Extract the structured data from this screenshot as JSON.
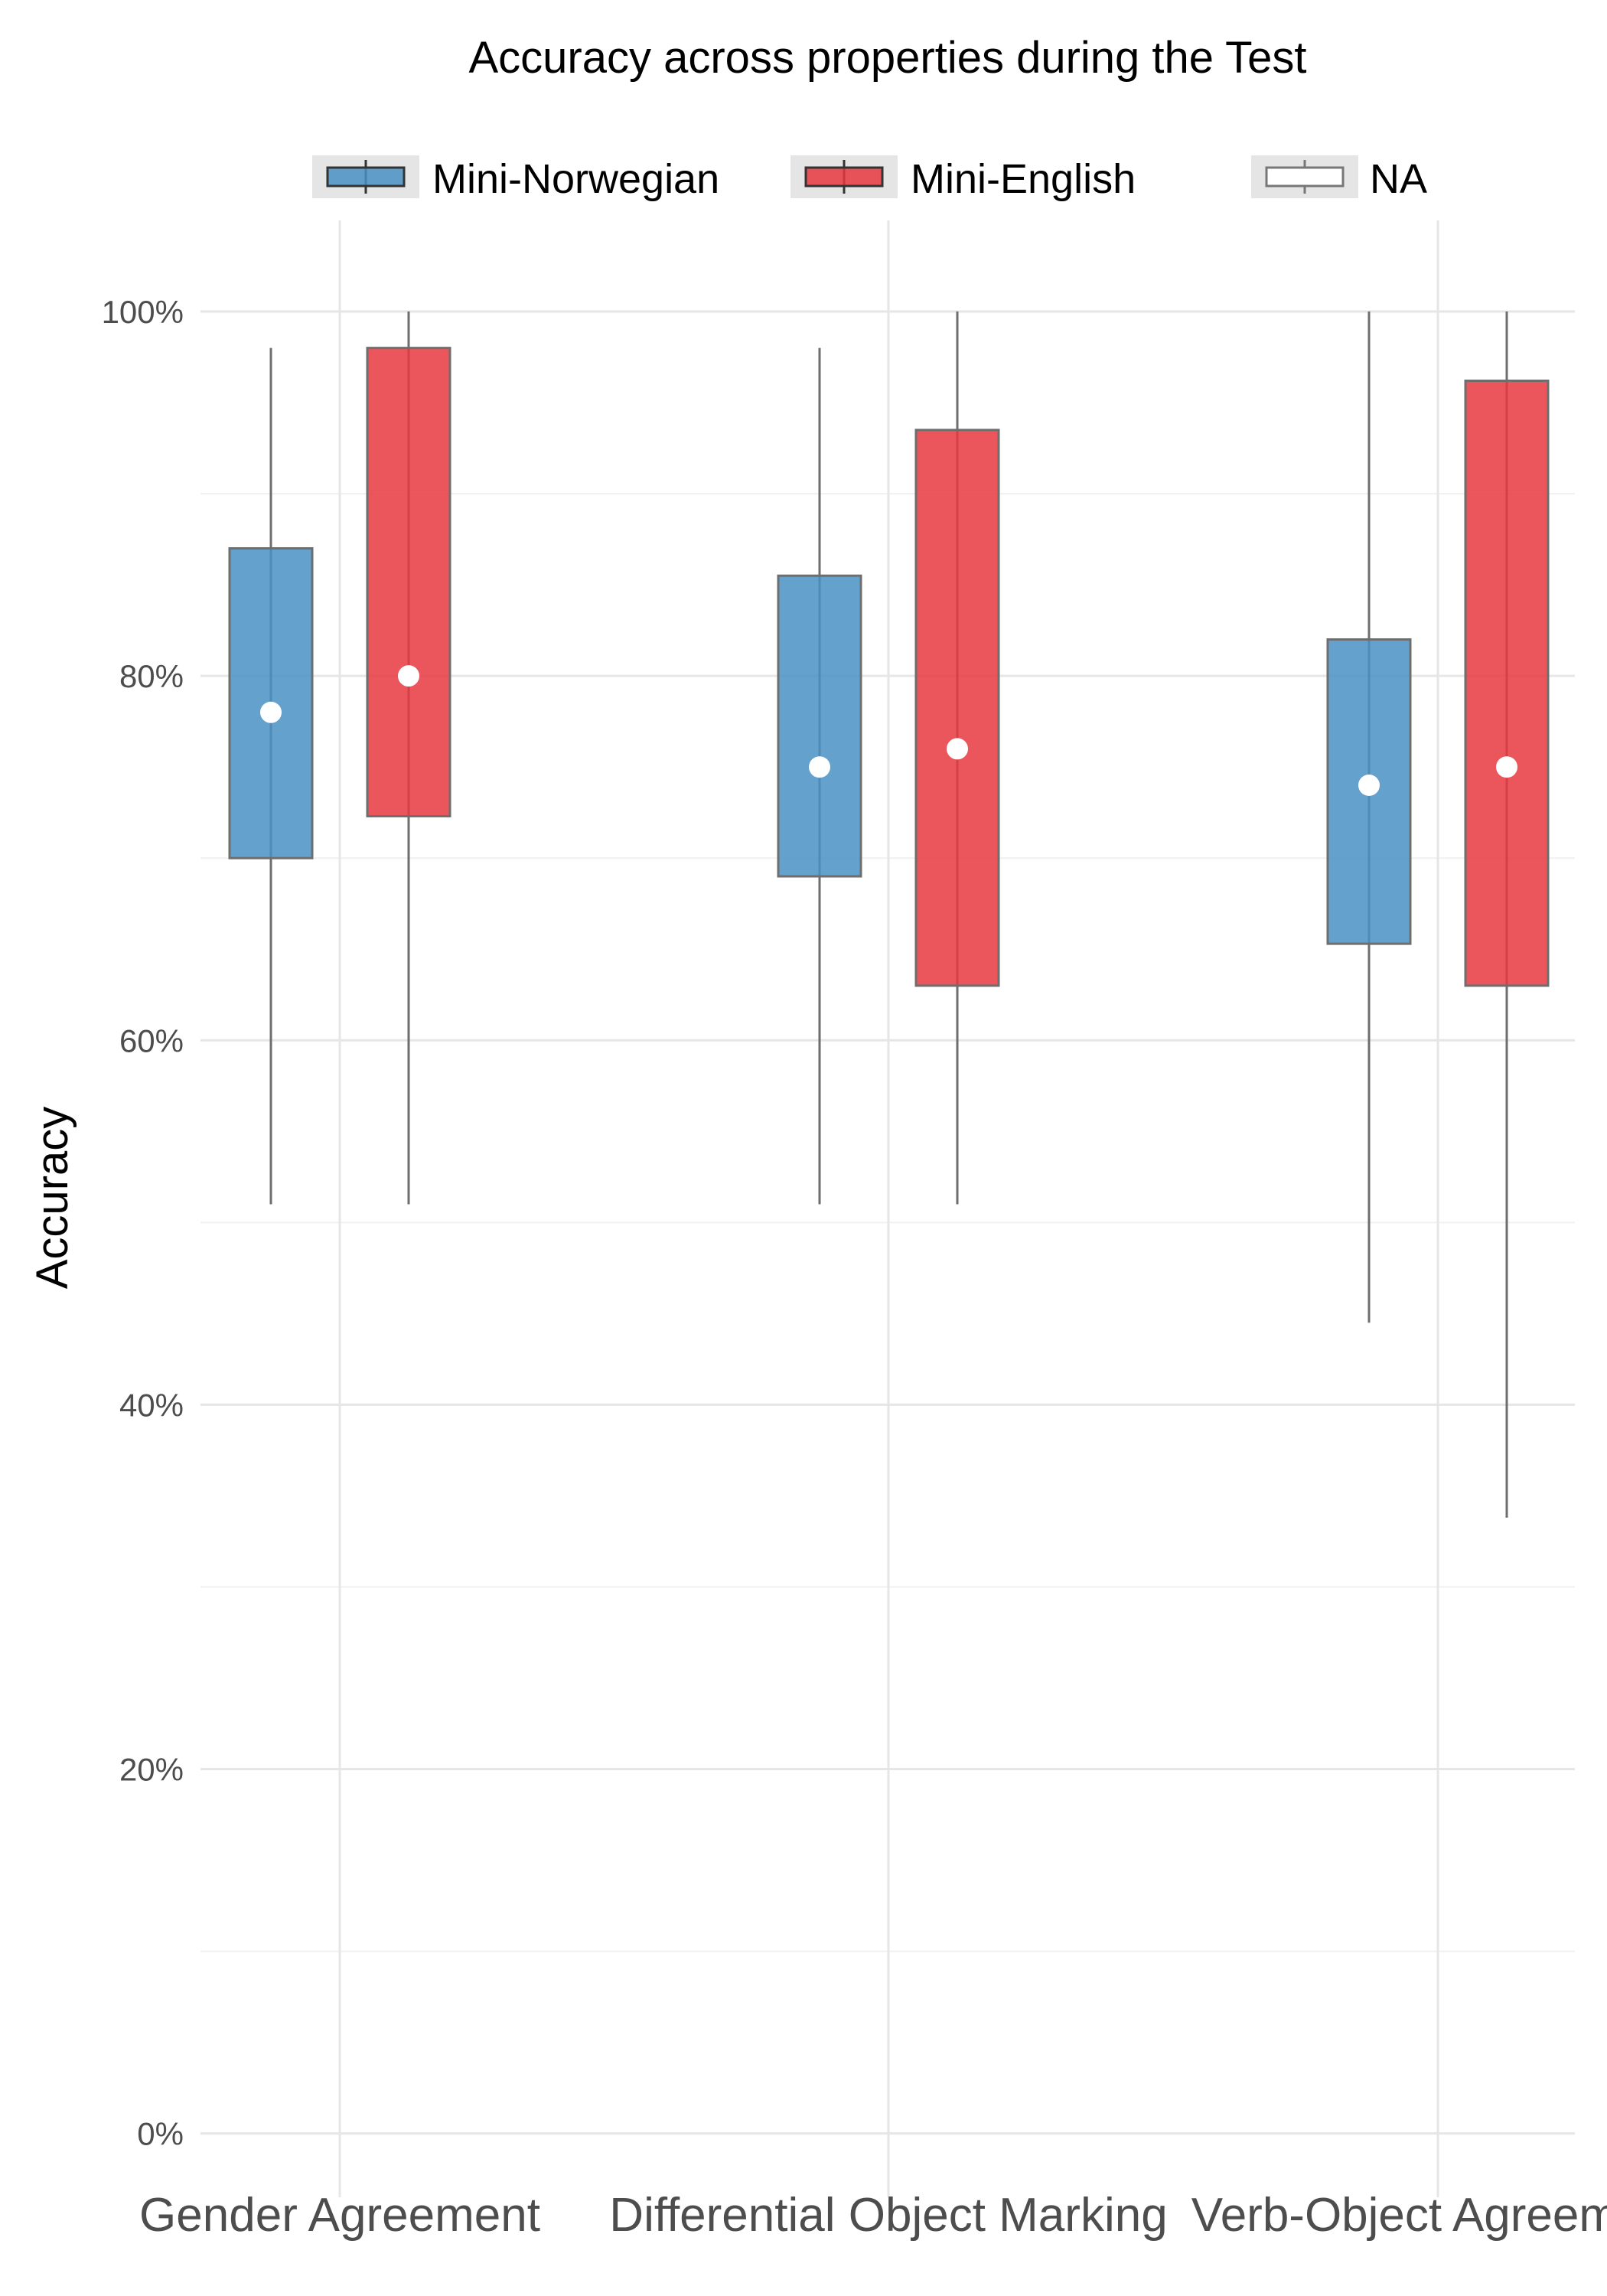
{
  "chart_data": {
    "type": "box",
    "title": "Accuracy across properties during the Test",
    "xlabel": "",
    "ylabel": "Accuracy",
    "ylim": [
      -0.035,
      1.05
    ],
    "y_ticks": [
      0,
      0.2,
      0.4,
      0.6,
      0.8,
      1.0
    ],
    "y_tick_labels": [
      "0%",
      "20%",
      "40%",
      "60%",
      "80%",
      "100%"
    ],
    "categories": [
      "Gender Agreement",
      "Differential Object Marking",
      "Verb-Object Agreement"
    ],
    "legend": {
      "position": "top",
      "entries": [
        {
          "label": "Mini-Norwegian",
          "color": "#4a90c4"
        },
        {
          "label": "Mini-English",
          "color": "#e8383f"
        },
        {
          "label": "NA",
          "color": "#ffffff"
        }
      ]
    },
    "grid": true,
    "series": [
      {
        "name": "Mini-Norwegian",
        "color": "#4a90c4",
        "boxes": [
          {
            "whisker_low": 0.51,
            "q1": 0.7,
            "q3": 0.87,
            "whisker_high": 0.98,
            "mean": 0.78
          },
          {
            "whisker_low": 0.51,
            "q1": 0.69,
            "q3": 0.855,
            "whisker_high": 0.98,
            "mean": 0.75
          },
          {
            "whisker_low": 0.445,
            "q1": 0.653,
            "q3": 0.82,
            "whisker_high": 1.0,
            "mean": 0.74
          }
        ]
      },
      {
        "name": "Mini-English",
        "color": "#e8383f",
        "boxes": [
          {
            "whisker_low": 0.51,
            "q1": 0.723,
            "q3": 0.98,
            "whisker_high": 1.0,
            "mean": 0.8
          },
          {
            "whisker_low": 0.51,
            "q1": 0.63,
            "q3": 0.935,
            "whisker_high": 1.0,
            "mean": 0.76
          },
          {
            "whisker_low": 0.338,
            "q1": 0.63,
            "q3": 0.962,
            "whisker_high": 1.0,
            "mean": 0.75
          }
        ]
      }
    ]
  }
}
